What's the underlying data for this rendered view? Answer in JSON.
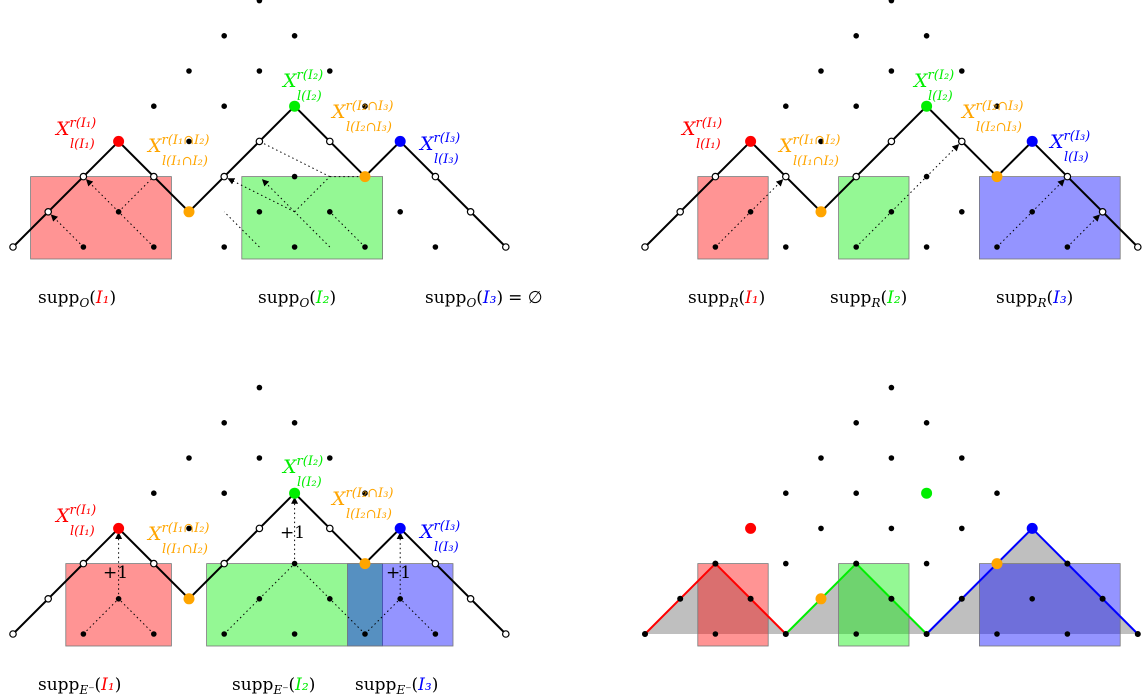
{
  "colors": {
    "I1": "#ff0000",
    "I2": "#00ee00",
    "I3": "#0000ff",
    "intersection": "#ffa500",
    "line": "#000000",
    "grey": "#a9a9a9"
  },
  "labels": {
    "X": "X",
    "r_I1": "r(I₁)",
    "l_I1": "l(I₁)",
    "r_I2": "r(I₂)",
    "l_I2": "l(I₂)",
    "r_I3": "r(I₃)",
    "l_I3": "l(I₃)",
    "r_I12": "r(I₁∩I₂)",
    "l_I12": "l(I₁∩I₂)",
    "r_I23": "r(I₂∩I₃)",
    "l_I23": "l(I₂∩I₃)",
    "plus_one": "+1"
  },
  "captions": {
    "supp": "supp",
    "sub_O": "O",
    "sub_R": "R",
    "sub_E": "E⁻",
    "I1": "I₁",
    "I2": "I₂",
    "I3": "I₃",
    "empty_set": "= ∅"
  }
}
